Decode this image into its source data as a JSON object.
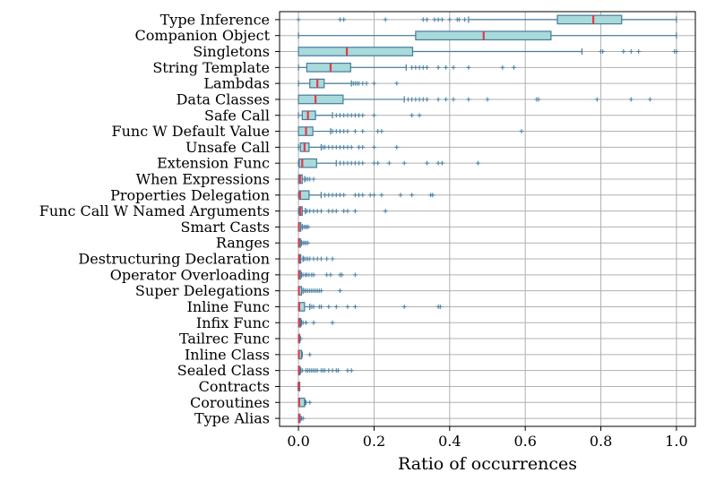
{
  "chart_data": {
    "type": "boxplot",
    "orientation": "horizontal",
    "xlabel": "Ratio of occurrences",
    "ylabel": "",
    "title": "",
    "xlim": [
      -0.05,
      1.05
    ],
    "xticks": [
      0.0,
      0.2,
      0.4,
      0.6,
      0.8,
      1.0
    ],
    "xtick_labels": [
      "0.0",
      "0.2",
      "0.4",
      "0.6",
      "0.8",
      "1.0"
    ],
    "grid": true,
    "colors": {
      "box_fill": "#a8dadc",
      "box_edge": "#457b9d",
      "median": "#e63946",
      "flier": "#457b9d"
    },
    "categories": [
      {
        "name": "Type Alias",
        "q1": 0.0,
        "median": 0.002,
        "q3": 0.004,
        "whisker_low": 0.0,
        "whisker_high": 0.005,
        "fliers": [
          0.008,
          0.012
        ]
      },
      {
        "name": "Coroutines",
        "q1": 0.0,
        "median": 0.002,
        "q3": 0.016,
        "whisker_low": 0.0,
        "whisker_high": 0.018,
        "fliers": [
          0.02,
          0.03
        ]
      },
      {
        "name": "Contracts",
        "q1": 0.0,
        "median": 0.0,
        "q3": 0.001,
        "whisker_low": 0.0,
        "whisker_high": 0.001,
        "fliers": []
      },
      {
        "name": "Sealed Class",
        "q1": 0.0,
        "median": 0.001,
        "q3": 0.004,
        "whisker_low": 0.0,
        "whisker_high": 0.006,
        "fliers": [
          0.01,
          0.02,
          0.025,
          0.03,
          0.035,
          0.04,
          0.045,
          0.05,
          0.06,
          0.065,
          0.07,
          0.08,
          0.09,
          0.1,
          0.105,
          0.13,
          0.14
        ]
      },
      {
        "name": "Inline Class",
        "q1": 0.0,
        "median": 0.001,
        "q3": 0.008,
        "whisker_low": 0.0,
        "whisker_high": 0.01,
        "fliers": [
          0.03
        ]
      },
      {
        "name": "Tailrec Func",
        "q1": 0.0,
        "median": 0.001,
        "q3": 0.003,
        "whisker_low": 0.0,
        "whisker_high": 0.004,
        "fliers": [
          0.006
        ]
      },
      {
        "name": "Infix Func",
        "q1": 0.0,
        "median": 0.002,
        "q3": 0.006,
        "whisker_low": 0.0,
        "whisker_high": 0.008,
        "fliers": [
          0.012,
          0.02,
          0.04,
          0.09
        ]
      },
      {
        "name": "Inline Func",
        "q1": 0.0,
        "median": 0.002,
        "q3": 0.016,
        "whisker_low": 0.0,
        "whisker_high": 0.03,
        "fliers": [
          0.035,
          0.04,
          0.055,
          0.06,
          0.08,
          0.1,
          0.13,
          0.15,
          0.28,
          0.37,
          0.375
        ]
      },
      {
        "name": "Super Delegations",
        "q1": 0.0,
        "median": 0.001,
        "q3": 0.008,
        "whisker_low": 0.0,
        "whisker_high": 0.012,
        "fliers": [
          0.016,
          0.02,
          0.025,
          0.03,
          0.035,
          0.04,
          0.045,
          0.05,
          0.055,
          0.06,
          0.11
        ]
      },
      {
        "name": "Operator Overloading",
        "q1": 0.0,
        "median": 0.001,
        "q3": 0.005,
        "whisker_low": 0.0,
        "whisker_high": 0.008,
        "fliers": [
          0.012,
          0.018,
          0.022,
          0.028,
          0.035,
          0.04,
          0.075,
          0.085,
          0.11,
          0.115,
          0.15
        ]
      },
      {
        "name": "Destructuring Declaration",
        "q1": 0.0,
        "median": 0.002,
        "q3": 0.006,
        "whisker_low": 0.0,
        "whisker_high": 0.012,
        "fliers": [
          0.015,
          0.02,
          0.025,
          0.03,
          0.04,
          0.05,
          0.06,
          0.075,
          0.09
        ]
      },
      {
        "name": "Ranges",
        "q1": 0.0,
        "median": 0.001,
        "q3": 0.005,
        "whisker_low": 0.0,
        "whisker_high": 0.008,
        "fliers": [
          0.012,
          0.016,
          0.02,
          0.025
        ]
      },
      {
        "name": "Smart Casts",
        "q1": 0.0,
        "median": 0.001,
        "q3": 0.006,
        "whisker_low": 0.0,
        "whisker_high": 0.01,
        "fliers": [
          0.014,
          0.018,
          0.022,
          0.026
        ]
      },
      {
        "name": "Func Call W Named Arguments",
        "q1": 0.002,
        "median": 0.005,
        "q3": 0.01,
        "whisker_low": 0.0,
        "whisker_high": 0.018,
        "fliers": [
          0.022,
          0.03,
          0.04,
          0.05,
          0.06,
          0.08,
          0.09,
          0.1,
          0.12,
          0.13,
          0.15,
          0.23
        ]
      },
      {
        "name": "Properties Delegation",
        "q1": 0.002,
        "median": 0.004,
        "q3": 0.028,
        "whisker_low": 0.0,
        "whisker_high": 0.06,
        "fliers": [
          0.07,
          0.08,
          0.09,
          0.1,
          0.11,
          0.12,
          0.15,
          0.16,
          0.17,
          0.19,
          0.2,
          0.22,
          0.27,
          0.3,
          0.35,
          0.355
        ]
      },
      {
        "name": "When Expressions",
        "q1": 0.0,
        "median": 0.004,
        "q3": 0.01,
        "whisker_low": 0.0,
        "whisker_high": 0.016,
        "fliers": [
          0.02,
          0.025,
          0.03,
          0.04
        ]
      },
      {
        "name": "Extension Func",
        "q1": 0.002,
        "median": 0.01,
        "q3": 0.048,
        "whisker_low": 0.0,
        "whisker_high": 0.1,
        "fliers": [
          0.11,
          0.12,
          0.13,
          0.14,
          0.15,
          0.16,
          0.17,
          0.2,
          0.21,
          0.24,
          0.28,
          0.34,
          0.37,
          0.38,
          0.475
        ]
      },
      {
        "name": "Unsafe Call",
        "q1": 0.005,
        "median": 0.016,
        "q3": 0.028,
        "whisker_low": 0.0,
        "whisker_high": 0.06,
        "fliers": [
          0.065,
          0.07,
          0.08,
          0.09,
          0.1,
          0.11,
          0.12,
          0.13,
          0.14,
          0.16,
          0.17,
          0.2,
          0.26
        ]
      },
      {
        "name": "Func W Default Value",
        "q1": 0.0,
        "median": 0.02,
        "q3": 0.038,
        "whisker_low": 0.0,
        "whisker_high": 0.085,
        "fliers": [
          0.09,
          0.1,
          0.11,
          0.12,
          0.13,
          0.15,
          0.17,
          0.21,
          0.22,
          0.59
        ]
      },
      {
        "name": "Safe Call",
        "q1": 0.01,
        "median": 0.025,
        "q3": 0.045,
        "whisker_low": 0.0,
        "whisker_high": 0.09,
        "fliers": [
          0.1,
          0.11,
          0.12,
          0.13,
          0.14,
          0.15,
          0.16,
          0.17,
          0.2,
          0.3,
          0.32
        ]
      },
      {
        "name": "Data Classes",
        "q1": 0.0,
        "median": 0.045,
        "q3": 0.118,
        "whisker_low": 0.0,
        "whisker_high": 0.28,
        "fliers": [
          0.29,
          0.3,
          0.31,
          0.32,
          0.33,
          0.34,
          0.37,
          0.39,
          0.41,
          0.45,
          0.5,
          0.63,
          0.635,
          0.79,
          0.88,
          0.93
        ]
      },
      {
        "name": "Lambdas",
        "q1": 0.03,
        "median": 0.05,
        "q3": 0.068,
        "whisker_low": 0.0,
        "whisker_high": 0.14,
        "fliers": [
          0.145,
          0.15,
          0.155,
          0.16,
          0.17,
          0.18,
          0.2,
          0.26
        ]
      },
      {
        "name": "String Template",
        "q1": 0.022,
        "median": 0.085,
        "q3": 0.138,
        "whisker_low": 0.0,
        "whisker_high": 0.285,
        "fliers": [
          0.3,
          0.31,
          0.32,
          0.33,
          0.34,
          0.37,
          0.39,
          0.41,
          0.45,
          0.54,
          0.57
        ]
      },
      {
        "name": "Singletons",
        "q1": 0.0,
        "median": 0.128,
        "q3": 0.302,
        "whisker_low": 0.0,
        "whisker_high": 0.75,
        "fliers": [
          0.8,
          0.805,
          0.86,
          0.88,
          0.9,
          0.995,
          1.0
        ]
      },
      {
        "name": "Companion Object",
        "q1": 0.31,
        "median": 0.49,
        "q3": 0.668,
        "whisker_low": 0.0,
        "whisker_high": 1.0,
        "fliers": []
      },
      {
        "name": "Type Inference",
        "q1": 0.685,
        "median": 0.78,
        "q3": 0.855,
        "whisker_low": 0.45,
        "whisker_high": 1.0,
        "fliers": [
          0.0,
          0.11,
          0.12,
          0.23,
          0.33,
          0.34,
          0.36,
          0.37,
          0.38,
          0.4,
          0.42,
          0.425,
          0.44
        ]
      }
    ]
  }
}
